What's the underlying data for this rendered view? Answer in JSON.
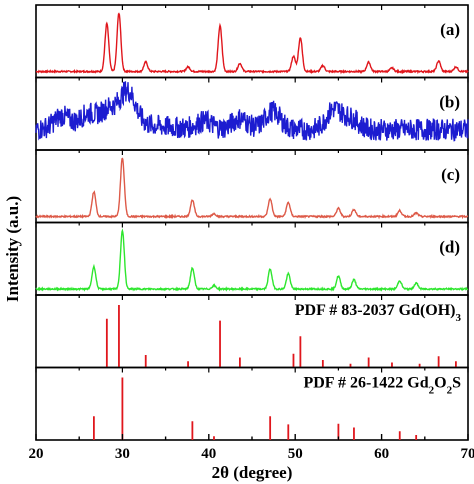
{
  "chart_data": {
    "type": "line",
    "xlabel": "2θ (degree)",
    "ylabel": "Intensity (a.u.)",
    "xlim": [
      20,
      70
    ],
    "xticks": [
      20,
      30,
      40,
      50,
      60,
      70
    ],
    "grid": false,
    "panels": [
      {
        "label": "(a)",
        "kind": "pattern",
        "color": "#e0161c",
        "peaks": [
          {
            "x": 28.2,
            "h": 0.82
          },
          {
            "x": 29.6,
            "h": 1.0
          },
          {
            "x": 32.7,
            "h": 0.16
          },
          {
            "x": 37.6,
            "h": 0.08
          },
          {
            "x": 41.3,
            "h": 0.78
          },
          {
            "x": 43.6,
            "h": 0.14
          },
          {
            "x": 49.8,
            "h": 0.26
          },
          {
            "x": 50.6,
            "h": 0.58
          },
          {
            "x": 53.2,
            "h": 0.1
          },
          {
            "x": 58.5,
            "h": 0.16
          },
          {
            "x": 61.2,
            "h": 0.06
          },
          {
            "x": 66.6,
            "h": 0.18
          },
          {
            "x": 68.6,
            "h": 0.08
          }
        ]
      },
      {
        "label": "(b)",
        "kind": "pattern",
        "color": "#1c1cd0",
        "peaks": [
          {
            "x": 23.0,
            "h": 0.3
          },
          {
            "x": 26.0,
            "h": 0.3
          },
          {
            "x": 28.4,
            "h": 0.38
          },
          {
            "x": 30.6,
            "h": 0.82
          },
          {
            "x": 39.5,
            "h": 0.2
          },
          {
            "x": 43.6,
            "h": 0.28
          },
          {
            "x": 47.4,
            "h": 0.46
          },
          {
            "x": 54.5,
            "h": 0.5
          },
          {
            "x": 56.5,
            "h": 0.26
          }
        ]
      },
      {
        "label": "(c)",
        "kind": "pattern",
        "color": "#dd5a48",
        "peaks": [
          {
            "x": 26.7,
            "h": 0.42
          },
          {
            "x": 30.0,
            "h": 1.0
          },
          {
            "x": 38.1,
            "h": 0.28
          },
          {
            "x": 40.6,
            "h": 0.05
          },
          {
            "x": 47.1,
            "h": 0.3
          },
          {
            "x": 49.2,
            "h": 0.24
          },
          {
            "x": 55.0,
            "h": 0.14
          },
          {
            "x": 56.8,
            "h": 0.12
          },
          {
            "x": 62.1,
            "h": 0.1
          },
          {
            "x": 64.0,
            "h": 0.06
          }
        ]
      },
      {
        "label": "(d)",
        "kind": "pattern",
        "color": "#2ee62e",
        "peaks": [
          {
            "x": 26.7,
            "h": 0.38
          },
          {
            "x": 30.0,
            "h": 1.0
          },
          {
            "x": 38.1,
            "h": 0.36
          },
          {
            "x": 40.6,
            "h": 0.06
          },
          {
            "x": 47.1,
            "h": 0.34
          },
          {
            "x": 49.2,
            "h": 0.26
          },
          {
            "x": 55.0,
            "h": 0.22
          },
          {
            "x": 56.8,
            "h": 0.16
          },
          {
            "x": 62.1,
            "h": 0.14
          },
          {
            "x": 64.0,
            "h": 0.1
          }
        ]
      },
      {
        "label": "PDF # 83-2037 Gd(OH)3",
        "label_parts": [
          {
            "t": "PDF # 83-2037 Gd(OH)"
          },
          {
            "t": "3",
            "sub": true
          }
        ],
        "kind": "reference",
        "color": "#e0161c",
        "peaks": [
          {
            "x": 28.2,
            "h": 0.78
          },
          {
            "x": 29.6,
            "h": 1.0
          },
          {
            "x": 32.7,
            "h": 0.2
          },
          {
            "x": 37.6,
            "h": 0.1
          },
          {
            "x": 41.3,
            "h": 0.75
          },
          {
            "x": 43.6,
            "h": 0.16
          },
          {
            "x": 49.8,
            "h": 0.22
          },
          {
            "x": 50.6,
            "h": 0.5
          },
          {
            "x": 53.2,
            "h": 0.12
          },
          {
            "x": 56.4,
            "h": 0.06
          },
          {
            "x": 58.5,
            "h": 0.16
          },
          {
            "x": 61.2,
            "h": 0.08
          },
          {
            "x": 64.4,
            "h": 0.06
          },
          {
            "x": 66.6,
            "h": 0.18
          },
          {
            "x": 68.6,
            "h": 0.1
          }
        ]
      },
      {
        "label": "PDF # 26-1422 Gd2O2S",
        "label_parts": [
          {
            "t": "PDF # 26-1422 Gd"
          },
          {
            "t": "2",
            "sub": true
          },
          {
            "t": "O"
          },
          {
            "t": "2",
            "sub": true
          },
          {
            "t": "S"
          }
        ],
        "kind": "reference",
        "color": "#e0161c",
        "peaks": [
          {
            "x": 26.7,
            "h": 0.38
          },
          {
            "x": 30.0,
            "h": 1.0
          },
          {
            "x": 38.1,
            "h": 0.3
          },
          {
            "x": 40.6,
            "h": 0.06
          },
          {
            "x": 47.1,
            "h": 0.38
          },
          {
            "x": 49.2,
            "h": 0.25
          },
          {
            "x": 55.0,
            "h": 0.26
          },
          {
            "x": 56.8,
            "h": 0.2
          },
          {
            "x": 62.1,
            "h": 0.14
          },
          {
            "x": 64.0,
            "h": 0.08
          }
        ]
      }
    ]
  }
}
